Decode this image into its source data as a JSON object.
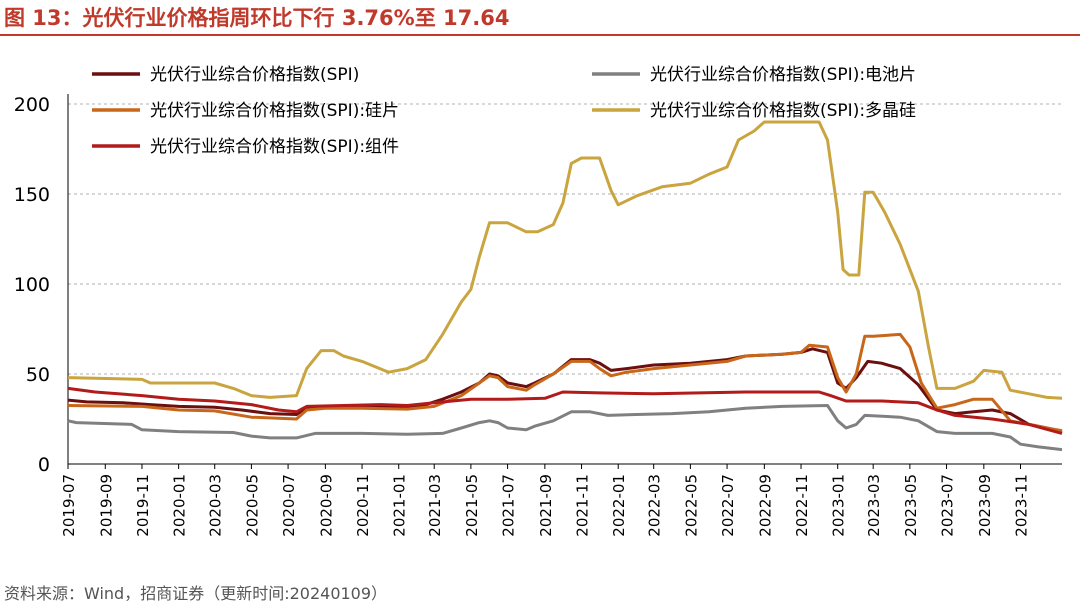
{
  "title": "图 13：光伏行业价格指周环比下行 3.76%至 17.64",
  "source": "资料来源：Wind，招商证券（更新时间:20240109）",
  "chart_data": {
    "type": "line",
    "xlabel": "",
    "ylabel": "",
    "ylim": [
      0,
      200
    ],
    "yticks": [
      0,
      50,
      100,
      150,
      200
    ],
    "xlim": [
      "2019-07-01",
      "2024-01-09"
    ],
    "xticks": [
      "2019-07",
      "2019-09",
      "2019-11",
      "2020-01",
      "2020-03",
      "2020-05",
      "2020-07",
      "2020-09",
      "2020-11",
      "2021-01",
      "2021-03",
      "2021-05",
      "2021-07",
      "2021-09",
      "2021-11",
      "2022-01",
      "2022-03",
      "2022-05",
      "2022-07",
      "2022-09",
      "2022-11",
      "2023-01",
      "2023-03",
      "2023-05",
      "2023-07",
      "2023-09",
      "2023-11"
    ],
    "grid": "horizontal-dashed",
    "legend": "top",
    "series": [
      {
        "name": "光伏行业综合价格指数(SPI)",
        "color": "#6b0f0f",
        "points": [
          [
            "2019-07-01",
            35.5
          ],
          [
            "2019-08-01",
            34.5
          ],
          [
            "2019-10-01",
            34
          ],
          [
            "2019-11-15",
            33
          ],
          [
            "2020-01-01",
            32
          ],
          [
            "2020-03-01",
            31.5
          ],
          [
            "2020-04-15",
            30
          ],
          [
            "2020-06-01",
            28
          ],
          [
            "2020-07-15",
            27.5
          ],
          [
            "2020-08-01",
            31.5
          ],
          [
            "2020-09-01",
            32
          ],
          [
            "2020-11-01",
            32.5
          ],
          [
            "2020-12-15",
            32
          ],
          [
            "2021-01-15",
            32
          ],
          [
            "2021-02-15",
            33
          ],
          [
            "2021-03-15",
            36
          ],
          [
            "2021-04-15",
            40
          ],
          [
            "2021-05-15",
            45
          ],
          [
            "2021-06-01",
            50
          ],
          [
            "2021-06-15",
            49
          ],
          [
            "2021-07-01",
            45
          ],
          [
            "2021-08-01",
            43
          ],
          [
            "2021-08-15",
            45
          ],
          [
            "2021-09-15",
            50
          ],
          [
            "2021-10-15",
            58
          ],
          [
            "2021-11-15",
            58
          ],
          [
            "2021-12-01",
            56
          ],
          [
            "2021-12-20",
            52
          ],
          [
            "2022-01-15",
            53
          ],
          [
            "2022-03-01",
            55
          ],
          [
            "2022-05-01",
            56
          ],
          [
            "2022-07-01",
            58
          ],
          [
            "2022-08-01",
            60
          ],
          [
            "2022-10-01",
            61
          ],
          [
            "2022-11-01",
            62
          ],
          [
            "2022-11-20",
            64
          ],
          [
            "2022-12-15",
            62
          ],
          [
            "2023-01-01",
            45
          ],
          [
            "2023-01-15",
            42
          ],
          [
            "2023-02-01",
            48
          ],
          [
            "2023-02-20",
            57
          ],
          [
            "2023-03-15",
            56
          ],
          [
            "2023-04-15",
            53
          ],
          [
            "2023-05-15",
            44
          ],
          [
            "2023-06-15",
            30
          ],
          [
            "2023-07-15",
            28
          ],
          [
            "2023-08-15",
            29
          ],
          [
            "2023-09-15",
            30
          ],
          [
            "2023-10-15",
            28
          ],
          [
            "2023-11-15",
            22
          ],
          [
            "2023-12-15",
            20
          ],
          [
            "2024-01-09",
            17.64
          ]
        ]
      },
      {
        "name": "光伏行业综合价格指数(SPI):电池片",
        "color": "#808080",
        "points": [
          [
            "2019-07-01",
            24
          ],
          [
            "2019-07-15",
            23
          ],
          [
            "2019-10-15",
            22
          ],
          [
            "2019-11-01",
            19
          ],
          [
            "2020-01-01",
            18
          ],
          [
            "2020-04-01",
            17.5
          ],
          [
            "2020-05-01",
            15.5
          ],
          [
            "2020-06-01",
            14.5
          ],
          [
            "2020-07-15",
            14.5
          ],
          [
            "2020-08-15",
            17
          ],
          [
            "2020-11-01",
            17
          ],
          [
            "2021-01-15",
            16.5
          ],
          [
            "2021-03-15",
            17
          ],
          [
            "2021-04-15",
            20
          ],
          [
            "2021-05-15",
            23
          ],
          [
            "2021-06-01",
            24
          ],
          [
            "2021-06-15",
            23
          ],
          [
            "2021-07-01",
            20
          ],
          [
            "2021-08-01",
            19
          ],
          [
            "2021-08-15",
            21
          ],
          [
            "2021-09-15",
            24
          ],
          [
            "2021-10-15",
            29
          ],
          [
            "2021-11-15",
            29
          ],
          [
            "2021-12-15",
            27
          ],
          [
            "2022-02-01",
            27.5
          ],
          [
            "2022-04-01",
            28
          ],
          [
            "2022-06-01",
            29
          ],
          [
            "2022-08-01",
            31
          ],
          [
            "2022-10-01",
            32
          ],
          [
            "2022-12-15",
            32.5
          ],
          [
            "2023-01-01",
            24
          ],
          [
            "2023-01-15",
            20
          ],
          [
            "2023-02-01",
            22
          ],
          [
            "2023-02-15",
            27
          ],
          [
            "2023-04-15",
            26
          ],
          [
            "2023-05-15",
            24
          ],
          [
            "2023-06-15",
            18
          ],
          [
            "2023-07-15",
            17
          ],
          [
            "2023-09-15",
            17
          ],
          [
            "2023-10-15",
            15
          ],
          [
            "2023-11-01",
            11
          ],
          [
            "2023-12-01",
            9.5
          ],
          [
            "2024-01-09",
            8
          ]
        ]
      },
      {
        "name": "光伏行业综合价格指数(SPI):硅片",
        "color": "#c8661a",
        "points": [
          [
            "2019-07-01",
            32.5
          ],
          [
            "2019-11-01",
            32
          ],
          [
            "2020-01-01",
            30
          ],
          [
            "2020-03-01",
            29.5
          ],
          [
            "2020-05-01",
            26
          ],
          [
            "2020-07-15",
            25
          ],
          [
            "2020-08-01",
            30
          ],
          [
            "2020-09-01",
            31
          ],
          [
            "2020-11-01",
            31
          ],
          [
            "2021-01-15",
            30.5
          ],
          [
            "2021-03-01",
            32
          ],
          [
            "2021-04-15",
            38
          ],
          [
            "2021-05-15",
            45
          ],
          [
            "2021-06-01",
            49
          ],
          [
            "2021-06-15",
            48
          ],
          [
            "2021-07-01",
            43
          ],
          [
            "2021-08-01",
            41
          ],
          [
            "2021-08-15",
            44
          ],
          [
            "2021-09-15",
            50
          ],
          [
            "2021-10-15",
            57
          ],
          [
            "2021-11-15",
            57
          ],
          [
            "2021-12-01",
            53
          ],
          [
            "2021-12-20",
            49
          ],
          [
            "2022-01-15",
            51
          ],
          [
            "2022-03-01",
            53
          ],
          [
            "2022-05-01",
            55
          ],
          [
            "2022-07-01",
            57
          ],
          [
            "2022-08-01",
            60
          ],
          [
            "2022-10-01",
            61
          ],
          [
            "2022-11-01",
            62
          ],
          [
            "2022-11-15",
            66
          ],
          [
            "2022-12-15",
            65
          ],
          [
            "2023-01-01",
            48
          ],
          [
            "2023-01-15",
            40
          ],
          [
            "2023-02-01",
            50
          ],
          [
            "2023-02-15",
            71
          ],
          [
            "2023-03-01",
            71
          ],
          [
            "2023-04-15",
            72
          ],
          [
            "2023-05-01",
            65
          ],
          [
            "2023-05-20",
            45
          ],
          [
            "2023-06-15",
            31
          ],
          [
            "2023-07-15",
            33
          ],
          [
            "2023-08-15",
            36
          ],
          [
            "2023-09-15",
            36
          ],
          [
            "2023-10-15",
            24
          ],
          [
            "2023-11-15",
            22
          ],
          [
            "2023-12-15",
            20
          ],
          [
            "2024-01-09",
            18.5
          ]
        ]
      },
      {
        "name": "光伏行业综合价格指数(SPI):多晶硅",
        "color": "#c9a43f",
        "points": [
          [
            "2019-07-01",
            48
          ],
          [
            "2019-11-01",
            47
          ],
          [
            "2019-11-15",
            45
          ],
          [
            "2020-03-01",
            45
          ],
          [
            "2020-04-01",
            42
          ],
          [
            "2020-05-01",
            38
          ],
          [
            "2020-06-01",
            37
          ],
          [
            "2020-07-15",
            38
          ],
          [
            "2020-08-01",
            53
          ],
          [
            "2020-08-25",
            63
          ],
          [
            "2020-09-15",
            63
          ],
          [
            "2020-10-01",
            60
          ],
          [
            "2020-11-01",
            57
          ],
          [
            "2020-12-15",
            51
          ],
          [
            "2021-01-15",
            53
          ],
          [
            "2021-02-15",
            58
          ],
          [
            "2021-03-15",
            72
          ],
          [
            "2021-04-15",
            90
          ],
          [
            "2021-05-01",
            97
          ],
          [
            "2021-05-15",
            115
          ],
          [
            "2021-06-01",
            134
          ],
          [
            "2021-07-01",
            134
          ],
          [
            "2021-08-01",
            129
          ],
          [
            "2021-08-20",
            129
          ],
          [
            "2021-09-15",
            133
          ],
          [
            "2021-10-01",
            145
          ],
          [
            "2021-10-15",
            167
          ],
          [
            "2021-11-01",
            170
          ],
          [
            "2021-12-01",
            170
          ],
          [
            "2021-12-20",
            152
          ],
          [
            "2022-01-01",
            144
          ],
          [
            "2022-02-01",
            149
          ],
          [
            "2022-03-15",
            154
          ],
          [
            "2022-05-01",
            156
          ],
          [
            "2022-06-01",
            161
          ],
          [
            "2022-07-01",
            165
          ],
          [
            "2022-07-20",
            180
          ],
          [
            "2022-08-15",
            185
          ],
          [
            "2022-09-01",
            190
          ],
          [
            "2022-12-01",
            190
          ],
          [
            "2022-12-15",
            180
          ],
          [
            "2023-01-01",
            140
          ],
          [
            "2023-01-10",
            108
          ],
          [
            "2023-01-20",
            105
          ],
          [
            "2023-02-05",
            105
          ],
          [
            "2023-02-15",
            151
          ],
          [
            "2023-03-01",
            151
          ],
          [
            "2023-03-20",
            140
          ],
          [
            "2023-04-15",
            122
          ],
          [
            "2023-05-15",
            96
          ],
          [
            "2023-06-01",
            65
          ],
          [
            "2023-06-15",
            42
          ],
          [
            "2023-07-15",
            42
          ],
          [
            "2023-08-15",
            46
          ],
          [
            "2023-09-01",
            52
          ],
          [
            "2023-10-01",
            51
          ],
          [
            "2023-10-15",
            41
          ],
          [
            "2023-11-15",
            39
          ],
          [
            "2023-12-15",
            37
          ],
          [
            "2024-01-09",
            36.5
          ]
        ]
      },
      {
        "name": "光伏行业综合价格指数(SPI):组件",
        "color": "#b31a1a",
        "points": [
          [
            "2019-07-01",
            42
          ],
          [
            "2019-08-15",
            40
          ],
          [
            "2019-11-01",
            38
          ],
          [
            "2020-01-01",
            36
          ],
          [
            "2020-03-01",
            35
          ],
          [
            "2020-05-01",
            33
          ],
          [
            "2020-06-15",
            30
          ],
          [
            "2020-07-15",
            29
          ],
          [
            "2020-08-01",
            32
          ],
          [
            "2020-10-01",
            32.5
          ],
          [
            "2020-12-01",
            33
          ],
          [
            "2021-01-15",
            32.5
          ],
          [
            "2021-03-01",
            34
          ],
          [
            "2021-05-01",
            36
          ],
          [
            "2021-07-01",
            36
          ],
          [
            "2021-09-01",
            36.5
          ],
          [
            "2021-10-01",
            40
          ],
          [
            "2021-12-01",
            39.5
          ],
          [
            "2022-03-01",
            39
          ],
          [
            "2022-08-01",
            40
          ],
          [
            "2022-12-01",
            40
          ],
          [
            "2022-12-20",
            38
          ],
          [
            "2023-01-15",
            35
          ],
          [
            "2023-03-15",
            35
          ],
          [
            "2023-05-15",
            34
          ],
          [
            "2023-06-15",
            30
          ],
          [
            "2023-07-15",
            27
          ],
          [
            "2023-09-15",
            25
          ],
          [
            "2023-11-15",
            22
          ],
          [
            "2024-01-09",
            17
          ]
        ]
      }
    ]
  }
}
